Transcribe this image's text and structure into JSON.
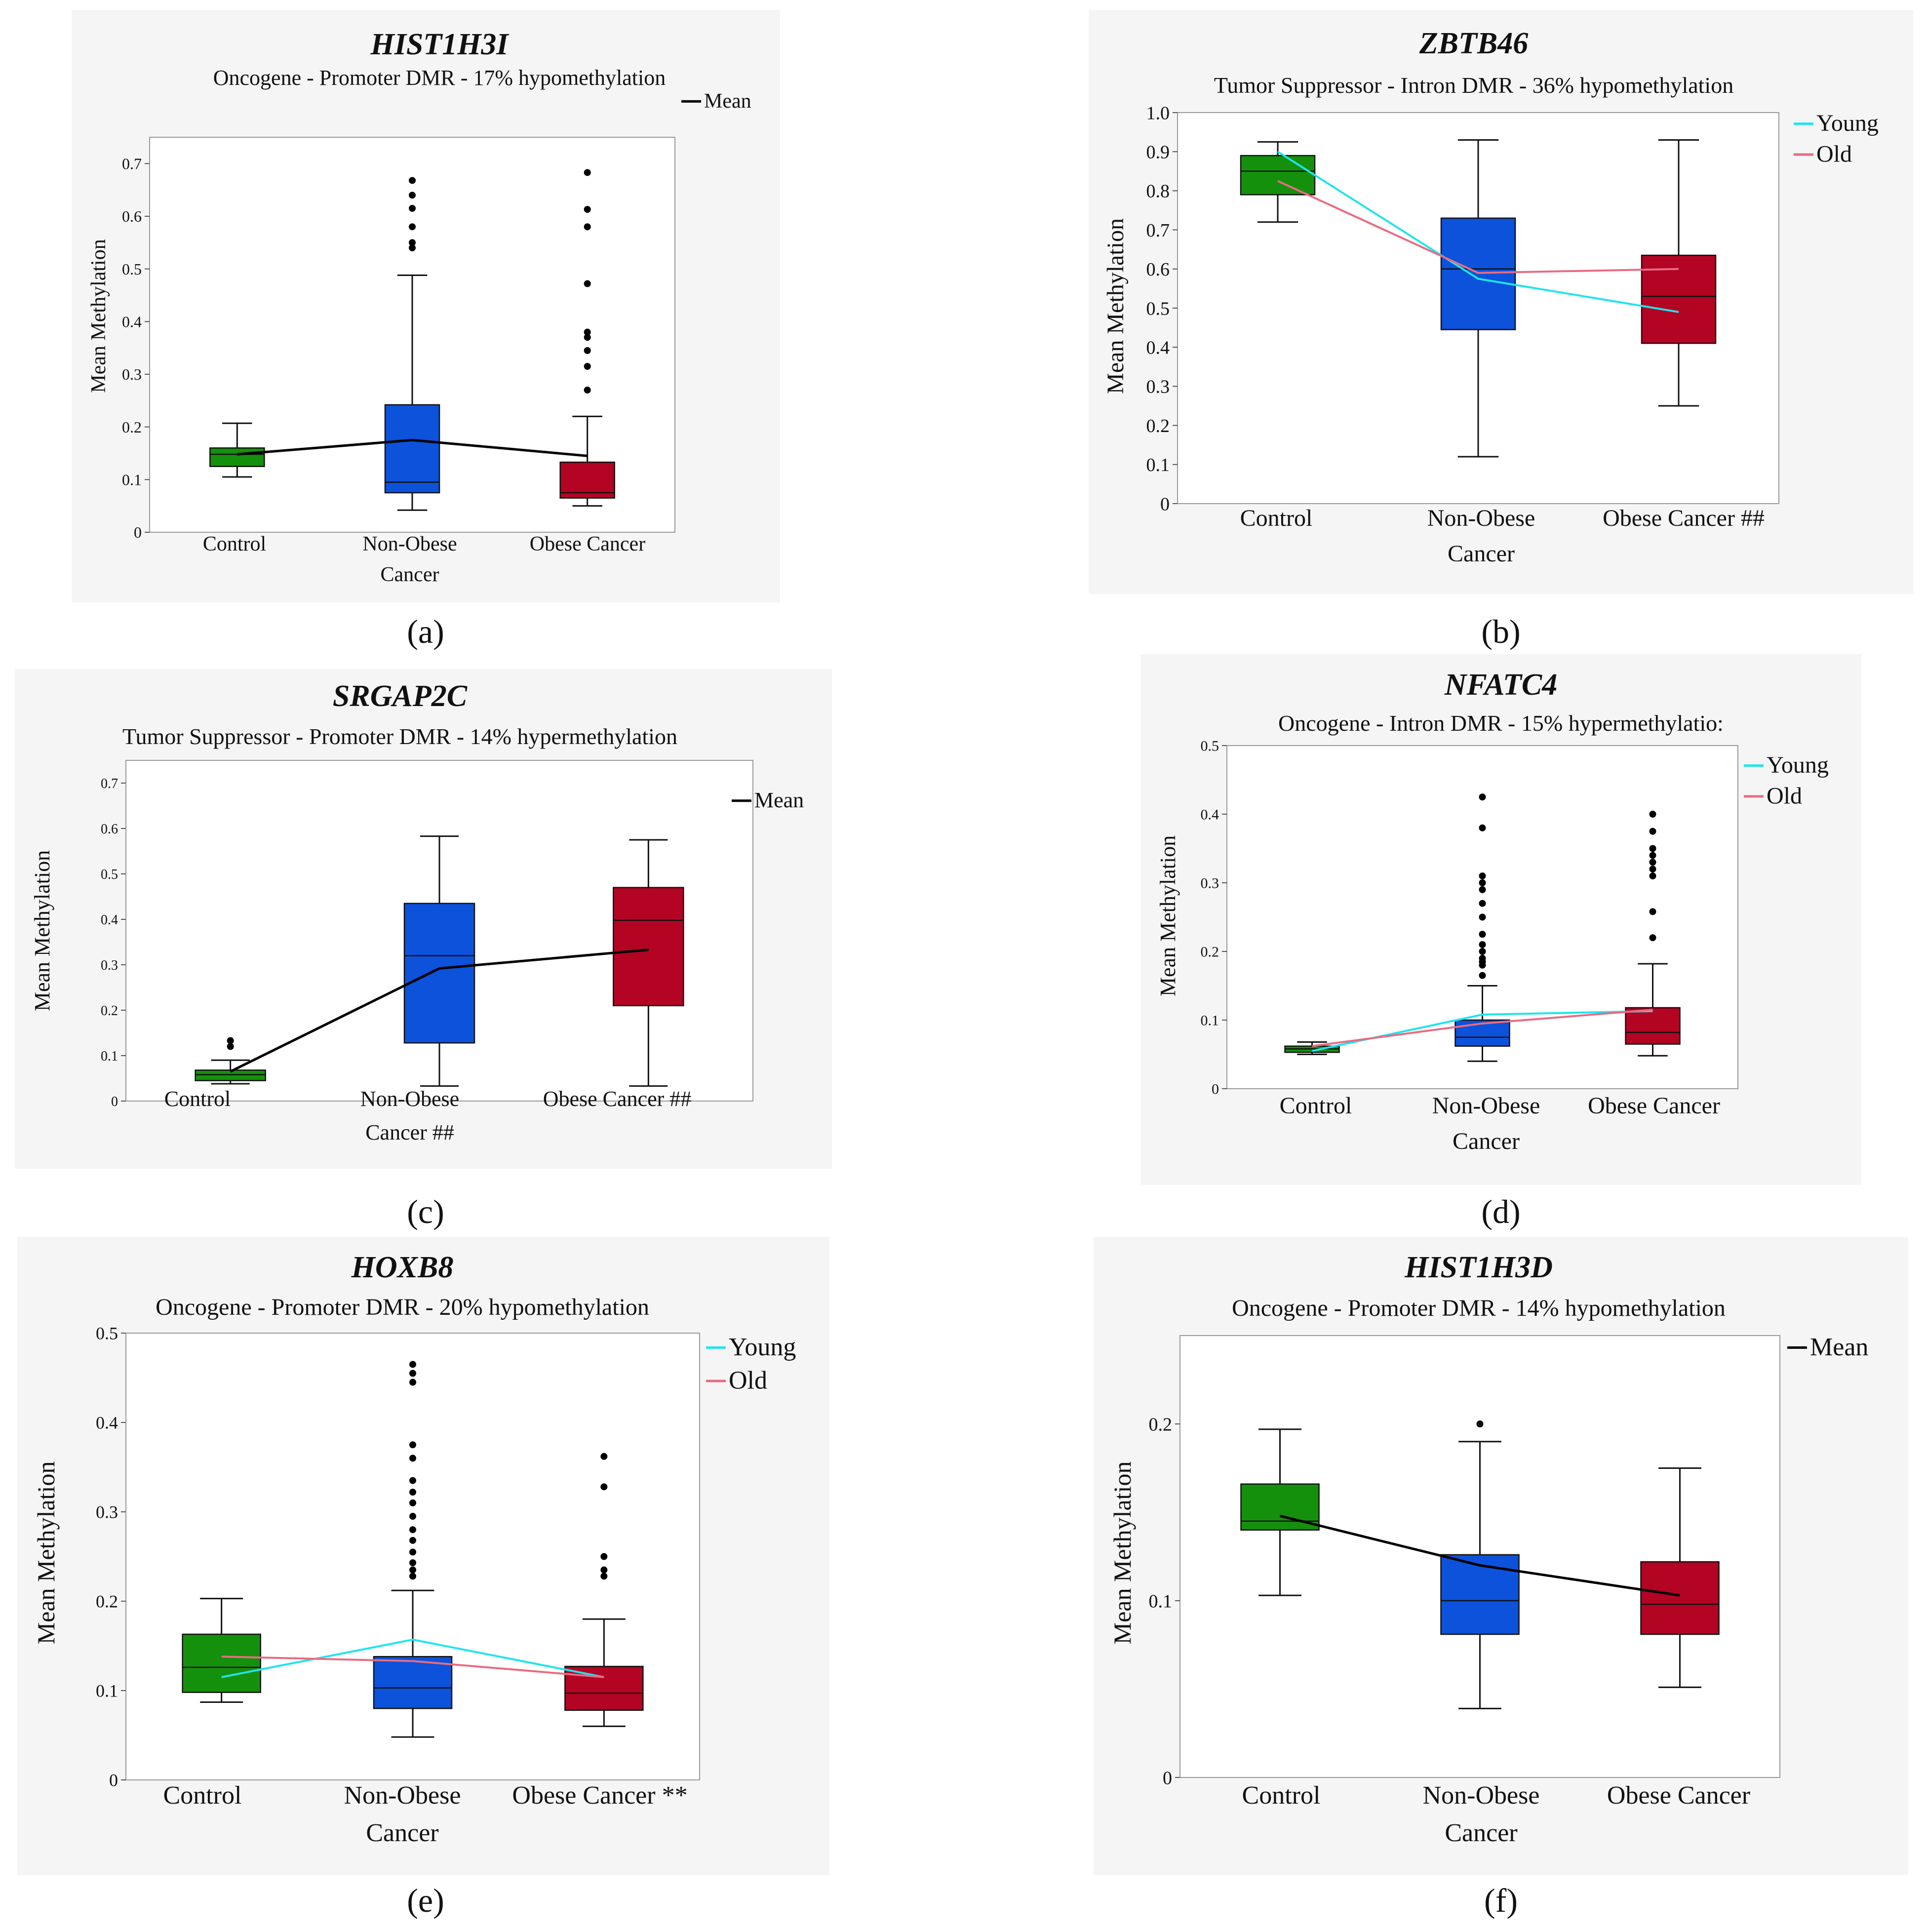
{
  "colors": {
    "control": "#15900c",
    "non_obese": "#0c52da",
    "obese": "#b30423",
    "young": "#1fe4ec",
    "old": "#e86b82",
    "mean": "#000000"
  },
  "chart_data": [
    {
      "id": "a",
      "type": "boxplot",
      "title": "HIST1H3I",
      "subtitle": "Oncogene - Promoter DMR - 17% hypomethylation",
      "ylabel": "Mean Methylation",
      "ylim": [
        0,
        0.75
      ],
      "yticks": [
        0,
        0.1,
        0.2,
        0.3,
        0.4,
        0.5,
        0.6,
        0.7
      ],
      "ytick_labels": [
        "0",
        "0.1",
        "0.2",
        "0.3",
        "0.4",
        "0.5",
        "0.6",
        "0.7"
      ],
      "categories": [
        {
          "lines": [
            "Control"
          ]
        },
        {
          "lines": [
            "Non-Obese",
            "Cancer"
          ]
        },
        {
          "lines": [
            "Obese Cancer"
          ]
        }
      ],
      "boxes": [
        {
          "min": 0.105,
          "q1": 0.125,
          "median": 0.148,
          "q3": 0.16,
          "max": 0.207,
          "outliers": []
        },
        {
          "min": 0.042,
          "q1": 0.075,
          "median": 0.095,
          "q3": 0.242,
          "max": 0.488,
          "outliers": [
            0.54,
            0.55,
            0.58,
            0.615,
            0.64,
            0.668
          ]
        },
        {
          "min": 0.05,
          "q1": 0.065,
          "median": 0.075,
          "q3": 0.133,
          "max": 0.22,
          "outliers": [
            0.27,
            0.315,
            0.345,
            0.37,
            0.38,
            0.472,
            0.58,
            0.613,
            0.683
          ]
        }
      ],
      "series": [
        {
          "name": "Mean",
          "color_key": "mean",
          "values": [
            0.148,
            0.175,
            0.145
          ]
        }
      ],
      "legend": [
        "Mean"
      ]
    },
    {
      "id": "b",
      "type": "boxplot",
      "title": "ZBTB46",
      "subtitle": "Tumor Suppressor - Intron DMR - 36% hypomethylation",
      "ylabel": "Mean Methylation",
      "ylim": [
        0,
        1.0
      ],
      "yticks": [
        0,
        0.1,
        0.2,
        0.3,
        0.4,
        0.5,
        0.6,
        0.7,
        0.8,
        0.9,
        1.0
      ],
      "ytick_labels": [
        "0",
        "0.1",
        "0.2",
        "0.3",
        "0.4",
        "0.5",
        "0.6",
        "0.7",
        "0.8",
        "0.9",
        "1.0"
      ],
      "categories": [
        {
          "lines": [
            "Control"
          ]
        },
        {
          "lines": [
            "Non-Obese",
            "Cancer"
          ]
        },
        {
          "lines": [
            "Obese Cancer ##"
          ]
        }
      ],
      "boxes": [
        {
          "min": 0.72,
          "q1": 0.79,
          "median": 0.85,
          "q3": 0.89,
          "max": 0.925,
          "outliers": []
        },
        {
          "min": 0.12,
          "q1": 0.445,
          "median": 0.6,
          "q3": 0.73,
          "max": 0.93,
          "outliers": []
        },
        {
          "min": 0.25,
          "q1": 0.41,
          "median": 0.53,
          "q3": 0.635,
          "max": 0.93,
          "outliers": []
        }
      ],
      "series": [
        {
          "name": "Young",
          "color_key": "young",
          "values": [
            0.9,
            0.575,
            0.49
          ]
        },
        {
          "name": "Old",
          "color_key": "old",
          "values": [
            0.825,
            0.59,
            0.6
          ]
        }
      ],
      "legend": [
        "Young",
        "Old"
      ]
    },
    {
      "id": "c",
      "type": "boxplot",
      "title": "SRGAP2C",
      "subtitle": "Tumor Suppressor - Promoter DMR - 14% hypermethylation",
      "ylabel": "Mean Methylation",
      "ylim": [
        0,
        0.75
      ],
      "yticks": [
        0,
        0.1,
        0.2,
        0.3,
        0.4,
        0.5,
        0.6,
        0.7
      ],
      "ytick_labels": [
        "0",
        "0.1",
        "0.2",
        "0.3",
        "0.4",
        "0.5",
        "0.6",
        "0.7"
      ],
      "categories": [
        {
          "lines": [
            "Control"
          ]
        },
        {
          "lines": [
            "Non-Obese",
            "Cancer ##"
          ]
        },
        {
          "lines": [
            "Obese Cancer ##"
          ]
        }
      ],
      "boxes": [
        {
          "min": 0.038,
          "q1": 0.045,
          "median": 0.058,
          "q3": 0.068,
          "max": 0.09,
          "outliers": [
            0.12,
            0.133
          ]
        },
        {
          "min": 0.033,
          "q1": 0.128,
          "median": 0.32,
          "q3": 0.435,
          "max": 0.583,
          "outliers": []
        },
        {
          "min": 0.033,
          "q1": 0.21,
          "median": 0.398,
          "q3": 0.47,
          "max": 0.575,
          "outliers": []
        }
      ],
      "series": [
        {
          "name": "Mean",
          "color_key": "mean",
          "values": [
            0.065,
            0.292,
            0.333
          ]
        }
      ],
      "legend": [
        "Mean"
      ]
    },
    {
      "id": "d",
      "type": "boxplot",
      "title": "NFATC4",
      "subtitle": "Oncogene - Intron DMR - 15% hypermethylatio:",
      "ylabel": "Mean Methylation",
      "ylim": [
        0,
        0.5
      ],
      "yticks": [
        0,
        0.1,
        0.2,
        0.3,
        0.4,
        0.5
      ],
      "ytick_labels": [
        "0",
        "0.1",
        "0.2",
        "0.3",
        "0.4",
        "0.5"
      ],
      "categories": [
        {
          "lines": [
            "Control"
          ]
        },
        {
          "lines": [
            "Non-Obese",
            "Cancer"
          ]
        },
        {
          "lines": [
            "Obese Cancer"
          ]
        }
      ],
      "boxes": [
        {
          "min": 0.05,
          "q1": 0.053,
          "median": 0.058,
          "q3": 0.062,
          "max": 0.068,
          "outliers": []
        },
        {
          "min": 0.04,
          "q1": 0.062,
          "median": 0.075,
          "q3": 0.1,
          "max": 0.15,
          "outliers": [
            0.165,
            0.18,
            0.185,
            0.19,
            0.2,
            0.21,
            0.225,
            0.25,
            0.27,
            0.29,
            0.3,
            0.31,
            0.38,
            0.425
          ]
        },
        {
          "min": 0.048,
          "q1": 0.065,
          "median": 0.082,
          "q3": 0.118,
          "max": 0.182,
          "outliers": [
            0.22,
            0.258,
            0.31,
            0.32,
            0.33,
            0.34,
            0.35,
            0.375,
            0.4
          ]
        }
      ],
      "series": [
        {
          "name": "Young",
          "color_key": "young",
          "values": [
            0.055,
            0.108,
            0.113
          ]
        },
        {
          "name": "Old",
          "color_key": "old",
          "values": [
            0.062,
            0.095,
            0.115
          ]
        }
      ],
      "legend": [
        "Young",
        "Old"
      ]
    },
    {
      "id": "e",
      "type": "boxplot",
      "title": "HOXB8",
      "subtitle": "Oncogene - Promoter DMR - 20% hypomethylation",
      "ylabel": "Mean Methylation",
      "ylim": [
        0,
        0.5
      ],
      "yticks": [
        0,
        0.1,
        0.2,
        0.3,
        0.4,
        0.5
      ],
      "ytick_labels": [
        "0",
        "0.1",
        "0.2",
        "0.3",
        "0.4",
        "0.5"
      ],
      "categories": [
        {
          "lines": [
            "Control"
          ]
        },
        {
          "lines": [
            "Non-Obese",
            "Cancer"
          ]
        },
        {
          "lines": [
            "Obese Cancer **"
          ]
        }
      ],
      "boxes": [
        {
          "min": 0.087,
          "q1": 0.098,
          "median": 0.126,
          "q3": 0.163,
          "max": 0.203,
          "outliers": []
        },
        {
          "min": 0.048,
          "q1": 0.08,
          "median": 0.103,
          "q3": 0.138,
          "max": 0.212,
          "outliers": [
            0.228,
            0.235,
            0.243,
            0.255,
            0.268,
            0.28,
            0.295,
            0.31,
            0.322,
            0.335,
            0.36,
            0.375,
            0.445,
            0.455,
            0.465
          ]
        },
        {
          "min": 0.06,
          "q1": 0.078,
          "median": 0.097,
          "q3": 0.127,
          "max": 0.18,
          "outliers": [
            0.228,
            0.235,
            0.25,
            0.328,
            0.362
          ]
        }
      ],
      "series": [
        {
          "name": "Young",
          "color_key": "young",
          "values": [
            0.115,
            0.157,
            0.115
          ]
        },
        {
          "name": "Old",
          "color_key": "old",
          "values": [
            0.138,
            0.133,
            0.115
          ]
        }
      ],
      "legend": [
        "Young",
        "Old"
      ]
    },
    {
      "id": "f",
      "type": "boxplot",
      "title": "HIST1H3D",
      "subtitle": "Oncogene - Promoter DMR - 14% hypomethylation",
      "ylabel": "Mean Methylation",
      "ylim": [
        0,
        0.25
      ],
      "yticks": [
        0,
        0.1,
        0.2
      ],
      "ytick_labels": [
        "0",
        "0.1",
        "0.2"
      ],
      "categories": [
        {
          "lines": [
            "Control"
          ]
        },
        {
          "lines": [
            "Non-Obese",
            "Cancer"
          ]
        },
        {
          "lines": [
            "Obese Cancer"
          ]
        }
      ],
      "boxes": [
        {
          "min": 0.103,
          "q1": 0.14,
          "median": 0.145,
          "q3": 0.166,
          "max": 0.197,
          "outliers": []
        },
        {
          "min": 0.039,
          "q1": 0.081,
          "median": 0.1,
          "q3": 0.126,
          "max": 0.19,
          "outliers": [
            0.2
          ]
        },
        {
          "min": 0.051,
          "q1": 0.081,
          "median": 0.098,
          "q3": 0.122,
          "max": 0.175,
          "outliers": []
        }
      ],
      "series": [
        {
          "name": "Mean",
          "color_key": "mean",
          "values": [
            0.148,
            0.12,
            0.103
          ]
        }
      ],
      "legend": [
        "Mean"
      ]
    }
  ],
  "captions": [
    "(a)",
    "(b)",
    "(c)",
    "(d)",
    "(e)",
    "(f)"
  ]
}
